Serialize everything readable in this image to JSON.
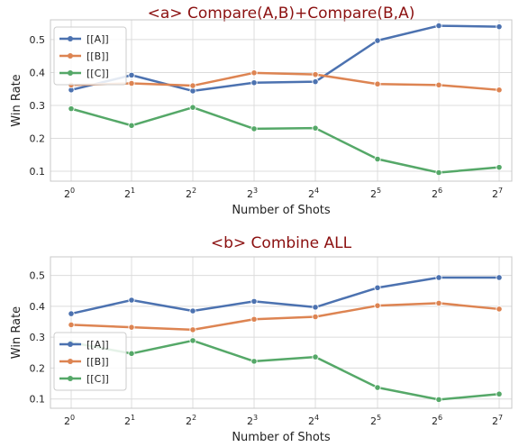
{
  "colors": {
    "A": "#4c72b0",
    "B": "#dd8452",
    "C": "#55a868"
  },
  "chart_data": [
    {
      "type": "line",
      "title": "<a> Compare(A,B)+Compare(B,A)",
      "xlabel": "Number of Shots",
      "ylabel": "Win Rate",
      "x_ticks": {
        "base": "2",
        "exponents": [
          "0",
          "1",
          "2",
          "3",
          "4",
          "5",
          "6",
          "7"
        ]
      },
      "y_ticks": [
        "0.1",
        "0.2",
        "0.3",
        "0.4",
        "0.5"
      ],
      "ylim": [
        0.07,
        0.56
      ],
      "grid": true,
      "legend": "top-left",
      "series": [
        {
          "name": "[[A]]",
          "values": [
            0.347,
            0.392,
            0.344,
            0.369,
            0.372,
            0.497,
            0.542,
            0.539
          ]
        },
        {
          "name": "[[B]]",
          "values": [
            0.362,
            0.367,
            0.36,
            0.399,
            0.394,
            0.365,
            0.362,
            0.347
          ]
        },
        {
          "name": "[[C]]",
          "values": [
            0.29,
            0.239,
            0.294,
            0.229,
            0.231,
            0.137,
            0.096,
            0.112
          ]
        }
      ]
    },
    {
      "type": "line",
      "title": "<b> Combine ALL",
      "xlabel": "Number of Shots",
      "ylabel": "Win Rate",
      "x_ticks": {
        "base": "2",
        "exponents": [
          "0",
          "1",
          "2",
          "3",
          "4",
          "5",
          "6",
          "7"
        ]
      },
      "y_ticks": [
        "0.1",
        "0.2",
        "0.3",
        "0.4",
        "0.5"
      ],
      "ylim": [
        0.07,
        0.56
      ],
      "grid": true,
      "legend": "bottom-left",
      "series": [
        {
          "name": "[[A]]",
          "values": [
            0.376,
            0.42,
            0.385,
            0.416,
            0.397,
            0.46,
            0.493,
            0.493
          ]
        },
        {
          "name": "[[B]]",
          "values": [
            0.34,
            0.332,
            0.324,
            0.358,
            0.366,
            0.402,
            0.41,
            0.391
          ]
        },
        {
          "name": "[[C]]",
          "values": [
            0.283,
            0.247,
            0.289,
            0.222,
            0.236,
            0.137,
            0.098,
            0.116
          ]
        }
      ]
    }
  ]
}
